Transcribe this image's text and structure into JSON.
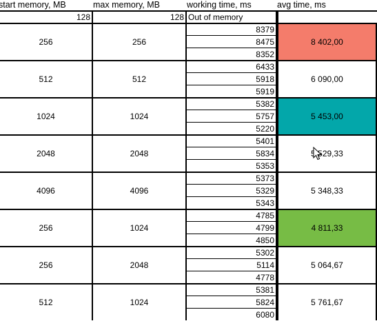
{
  "headers": [
    "start memory, MB",
    "max memory, MB",
    "working time, ms",
    "avg time, ms"
  ],
  "first_row": {
    "start": "128",
    "max": "128",
    "note": "Out of memory"
  },
  "groups": [
    {
      "start": "256",
      "max": "256",
      "times": [
        "8379",
        "8475",
        "8352"
      ],
      "avg": "8 402,00",
      "fill": "#f47c6b"
    },
    {
      "start": "512",
      "max": "512",
      "times": [
        "6433",
        "5918",
        "5919"
      ],
      "avg": "6 090,00",
      "fill": ""
    },
    {
      "start": "1024",
      "max": "1024",
      "times": [
        "5382",
        "5757",
        "5220"
      ],
      "avg": "5 453,00",
      "fill": "#03a7aa"
    },
    {
      "start": "2048",
      "max": "2048",
      "times": [
        "5401",
        "5834",
        "5353"
      ],
      "avg": "5 529,33",
      "fill": ""
    },
    {
      "start": "4096",
      "max": "4096",
      "times": [
        "5373",
        "5329",
        "5343"
      ],
      "avg": "5 348,33",
      "fill": ""
    },
    {
      "start": "256",
      "max": "1024",
      "times": [
        "4785",
        "4799",
        "4850"
      ],
      "avg": "4 811,33",
      "fill": "#77bc45"
    },
    {
      "start": "256",
      "max": "2048",
      "times": [
        "5302",
        "5114",
        "4778"
      ],
      "avg": "5 064,67",
      "fill": ""
    },
    {
      "start": "512",
      "max": "1024",
      "times": [
        "5381",
        "5824",
        "6080"
      ],
      "avg": "5 761,67",
      "fill": ""
    }
  ]
}
